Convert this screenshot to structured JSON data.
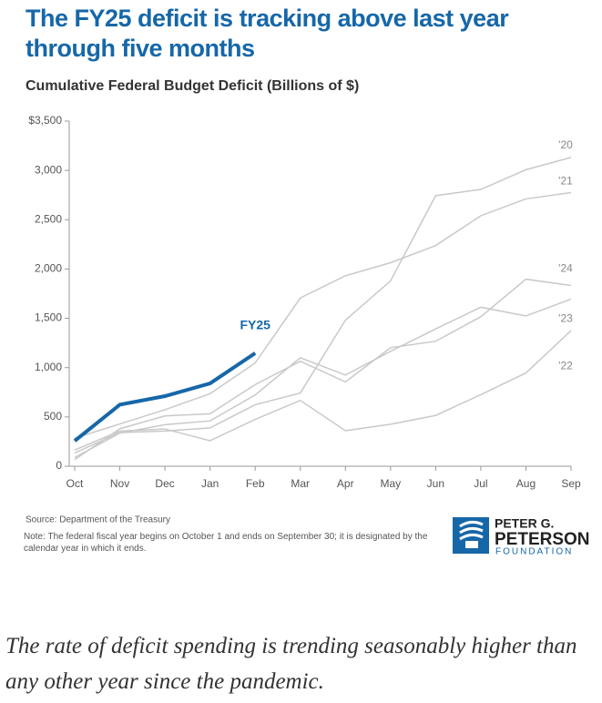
{
  "chart_data": {
    "type": "line",
    "title": "The FY25 deficit is tracking above last year through five months",
    "subtitle": "Cumulative Federal Budget Deficit (Billions of $)",
    "categories": [
      "Oct",
      "Nov",
      "Dec",
      "Jan",
      "Feb",
      "Mar",
      "Apr",
      "May",
      "Jun",
      "Jul",
      "Aug",
      "Sep"
    ],
    "series": [
      {
        "name": "'20",
        "color": "#c9c9c9",
        "values": [
          134,
          342,
          357,
          389,
          624,
          743,
          1481,
          1880,
          2744,
          2807,
          3007,
          3132
        ]
      },
      {
        "name": "'21",
        "color": "#c9c9c9",
        "values": [
          284,
          429,
          573,
          736,
          1047,
          1706,
          1932,
          2064,
          2238,
          2540,
          2711,
          2775
        ]
      },
      {
        "name": "'22",
        "color": "#c9c9c9",
        "values": [
          165,
          357,
          378,
          259,
          475,
          668,
          360,
          426,
          515,
          726,
          946,
          1375
        ]
      },
      {
        "name": "'23",
        "color": "#c9c9c9",
        "values": [
          88,
          336,
          421,
          460,
          723,
          1100,
          925,
          1165,
          1393,
          1613,
          1524,
          1695
        ]
      },
      {
        "name": "'24",
        "color": "#c9c9c9",
        "values": [
          67,
          380,
          510,
          532,
          828,
          1065,
          855,
          1202,
          1268,
          1516,
          1897,
          1833
        ]
      },
      {
        "name": "FY25",
        "color": "#1667a8",
        "values": [
          257,
          624,
          711,
          840,
          1147,
          null,
          null,
          null,
          null,
          null,
          null,
          null
        ]
      }
    ],
    "ylim": [
      0,
      3500
    ],
    "yticks": [
      0,
      {
        "value": 500,
        "label": "500"
      },
      {
        "value": 1000,
        "label": "1,000"
      },
      {
        "value": 1500,
        "label": "1,500"
      },
      {
        "value": 2000,
        "label": "2,000"
      },
      {
        "value": 2500,
        "label": "2,500"
      },
      {
        "value": 3000,
        "label": "3,000"
      },
      {
        "value": 3500,
        "label": "$3,500"
      }
    ],
    "source": "Source: Department of the Treasury",
    "note": "Note: The federal fiscal year begins on October 1 and ends on September 30; it is designated by the calendar year in which it ends."
  },
  "logo": {
    "line1": "PETER G.",
    "line2": "PETERSON",
    "line3": "FOUNDATION"
  },
  "caption": "The rate of deficit spending is trending seasonably higher than any other year since the pandemic."
}
